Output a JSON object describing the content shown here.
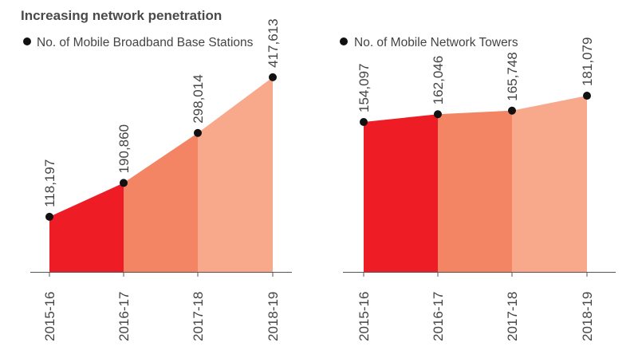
{
  "title": "Increasing network penetration",
  "chart_data": [
    {
      "type": "area",
      "legend": "No. of Mobile Broadband Base Stations",
      "categories": [
        "2015-16",
        "2016-17",
        "2017-18",
        "2018-19"
      ],
      "values": [
        118197,
        190860,
        298014,
        417613
      ],
      "value_labels": [
        "118,197",
        "190,860",
        "298,014",
        "417,613"
      ],
      "ylim": [
        0,
        455000
      ]
    },
    {
      "type": "area",
      "legend": "No. of Mobile Network Towers",
      "categories": [
        "2015-16",
        "2016-17",
        "2017-18",
        "2018-19"
      ],
      "values": [
        154097,
        162046,
        165748,
        181079
      ],
      "value_labels": [
        "154,097",
        "162,046",
        "165,748",
        "181,079"
      ],
      "ylim": [
        0,
        218000
      ]
    }
  ],
  "colors": {
    "segments": [
      "#ee1c25",
      "#f38464",
      "#f8a98b"
    ],
    "baseline": "#555555",
    "marker": "#111111",
    "text": "#444444"
  }
}
